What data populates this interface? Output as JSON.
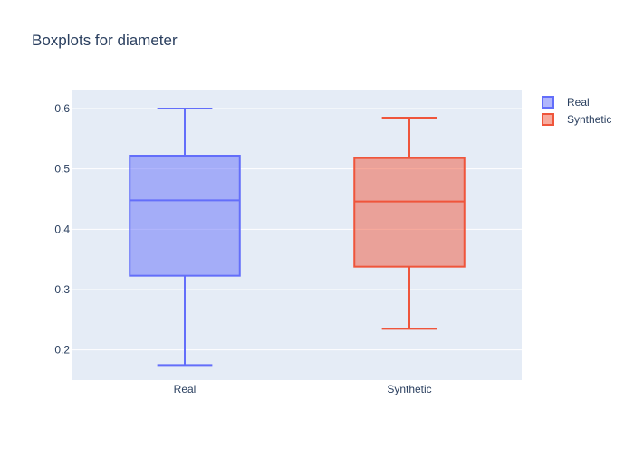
{
  "chart_data": {
    "type": "box",
    "title": "Boxplots for diameter",
    "xlabel": "",
    "ylabel": "",
    "ylim": [
      0.15,
      0.63
    ],
    "yticks": [
      0.2,
      0.3,
      0.4,
      0.5,
      0.6
    ],
    "ytick_labels": [
      "0.2",
      "0.3",
      "0.4",
      "0.5",
      "0.6"
    ],
    "grid": true,
    "legend_position": "top-right",
    "categories": [
      "Real",
      "Synthetic"
    ],
    "series": [
      {
        "name": "Real",
        "color": "#636efa",
        "min": 0.175,
        "q1": 0.323,
        "median": 0.448,
        "q3": 0.522,
        "max": 0.6
      },
      {
        "name": "Synthetic",
        "color": "#ef553b",
        "min": 0.235,
        "q1": 0.338,
        "median": 0.446,
        "q3": 0.518,
        "max": 0.585
      }
    ]
  }
}
